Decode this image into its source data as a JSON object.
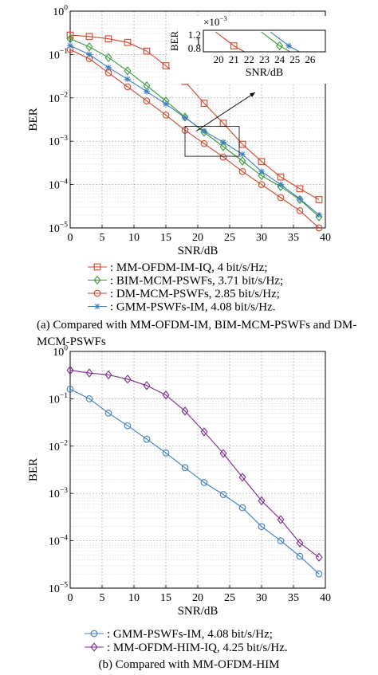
{
  "chart_data": [
    {
      "type": "line",
      "ylog": true,
      "xlabel": "SNR/dB",
      "ylabel": "BER",
      "xlim": [
        0,
        40
      ],
      "ylim": [
        1e-05,
        1
      ],
      "xticks": [
        0,
        5,
        10,
        15,
        20,
        25,
        30,
        35,
        40
      ],
      "yticks": [
        {
          "base": "10",
          "exp": "0",
          "value": 1
        },
        {
          "base": "10",
          "exp": "−1",
          "value": 0.1
        },
        {
          "base": "10",
          "exp": "−2",
          "value": 0.01
        },
        {
          "base": "10",
          "exp": "−3",
          "value": 0.001
        },
        {
          "base": "10",
          "exp": "−4",
          "value": 0.0001
        },
        {
          "base": "10",
          "exp": "−5",
          "value": 1e-05
        }
      ],
      "grid": true,
      "legend_position": "below",
      "caption": "(a) Compared with MM-OFDM-IM, BIM-MCM-PSWFs and DM-MCM-PSWFs",
      "series": [
        {
          "name": ": MM-OFDM-IM-IQ, 4 bit/s/Hz;",
          "color": "#d0452b",
          "marker": "square",
          "x": [
            0,
            3,
            6,
            9,
            12,
            15,
            18,
            21,
            24,
            27,
            30,
            33,
            36,
            39
          ],
          "y": [
            0.28,
            0.26,
            0.23,
            0.19,
            0.12,
            0.055,
            0.024,
            0.0075,
            0.0026,
            0.00085,
            0.00034,
            0.00015,
            8e-05,
            4.5e-05
          ]
        },
        {
          "name": ": BIM-MCM-PSWFs, 3.71 bit/s/Hz;",
          "color": "#3a9a3a",
          "marker": "diamond",
          "x": [
            0,
            3,
            6,
            9,
            12,
            15,
            18,
            21,
            24,
            27,
            30,
            33,
            36,
            39
          ],
          "y": [
            0.23,
            0.15,
            0.085,
            0.042,
            0.019,
            0.0085,
            0.0036,
            0.0016,
            0.00075,
            0.00035,
            0.00016,
            9e-05,
            4.5e-05,
            1.8e-05
          ]
        },
        {
          "name": ": DM-MCM-PSWFs, 2.85 bit/s/Hz;",
          "color": "#d0452b",
          "marker": "circle",
          "x": [
            0,
            3,
            6,
            9,
            12,
            15,
            18,
            21,
            24,
            27,
            30,
            33,
            36,
            39
          ],
          "y": [
            0.13,
            0.08,
            0.038,
            0.018,
            0.0085,
            0.004,
            0.0018,
            0.00088,
            0.00043,
            0.0002,
            0.0001,
            5e-05,
            2.5e-05,
            1e-05
          ]
        },
        {
          "name": ": GMM-PSWFs-IM, 4.08 bit/s/Hz.",
          "color": "#3f7fbf",
          "marker": "star",
          "x": [
            0,
            3,
            6,
            9,
            12,
            15,
            18,
            21,
            24,
            27,
            30,
            33,
            36,
            39
          ],
          "y": [
            0.16,
            0.1,
            0.05,
            0.027,
            0.014,
            0.0072,
            0.0035,
            0.0017,
            0.00095,
            0.0005,
            0.0002,
            0.0001,
            4.7e-05,
            2e-05
          ]
        }
      ],
      "inset": {
        "multiplier_base": "×10",
        "multiplier_exp": "−3",
        "ylabel": "BER",
        "xlabel": "SNR/dB",
        "xlim": [
          19,
          27
        ],
        "ylim": [
          0.7,
          1.35
        ],
        "xticks": [
          20,
          21,
          22,
          23,
          24,
          25,
          26
        ],
        "yticks": [
          {
            "label": "1.2",
            "value": 1.2
          },
          {
            "label": "1",
            "value": 1.0
          },
          {
            "label": "0.8",
            "value": 0.8
          }
        ],
        "series": [
          {
            "color": "#d0452b",
            "x": [
              19.8,
              21,
              22
            ],
            "y": [
              1.3,
              0.88,
              0.62
            ]
          },
          {
            "color": "#3a9a3a",
            "x": [
              22.8,
              24,
              25
            ],
            "y": [
              1.3,
              0.88,
              0.62
            ]
          },
          {
            "color": "#3f7fbf",
            "x": [
              23.4,
              24.6,
              25.6
            ],
            "y": [
              1.3,
              0.88,
              0.62
            ]
          }
        ]
      }
    },
    {
      "type": "line",
      "ylog": true,
      "xlabel": "SNR/dB",
      "ylabel": "BER",
      "xlim": [
        0,
        40
      ],
      "ylim": [
        1e-05,
        1
      ],
      "xticks": [
        0,
        5,
        10,
        15,
        20,
        25,
        30,
        35,
        40
      ],
      "yticks": [
        {
          "base": "10",
          "exp": "0",
          "value": 1
        },
        {
          "base": "10",
          "exp": "−1",
          "value": 0.1
        },
        {
          "base": "10",
          "exp": "−2",
          "value": 0.01
        },
        {
          "base": "10",
          "exp": "−3",
          "value": 0.001
        },
        {
          "base": "10",
          "exp": "−4",
          "value": 0.0001
        },
        {
          "base": "10",
          "exp": "−5",
          "value": 1e-05
        }
      ],
      "grid": true,
      "legend_position": "below",
      "caption": "(b) Compared with MM-OFDM-HIM",
      "series": [
        {
          "name": ": GMM-PSWFs-IM, 4.08 bit/s/Hz;",
          "color": "#3f7fbf",
          "marker": "circle",
          "x": [
            0,
            3,
            6,
            9,
            12,
            15,
            18,
            21,
            24,
            27,
            30,
            33,
            36,
            39
          ],
          "y": [
            0.16,
            0.1,
            0.05,
            0.027,
            0.014,
            0.0072,
            0.0035,
            0.0017,
            0.00095,
            0.0005,
            0.0002,
            0.0001,
            4.7e-05,
            2e-05
          ]
        },
        {
          "name": ": MM-OFDM-HIM-IQ, 4.25 bit/s/Hz.",
          "color": "#7b2a8c",
          "marker": "diamond",
          "x": [
            0,
            3,
            6,
            9,
            12,
            15,
            18,
            21,
            24,
            27,
            30,
            33,
            36,
            39
          ],
          "y": [
            0.4,
            0.35,
            0.32,
            0.26,
            0.19,
            0.12,
            0.055,
            0.02,
            0.007,
            0.0022,
            0.0007,
            0.00028,
            9e-05,
            4.5e-05
          ]
        }
      ]
    }
  ]
}
